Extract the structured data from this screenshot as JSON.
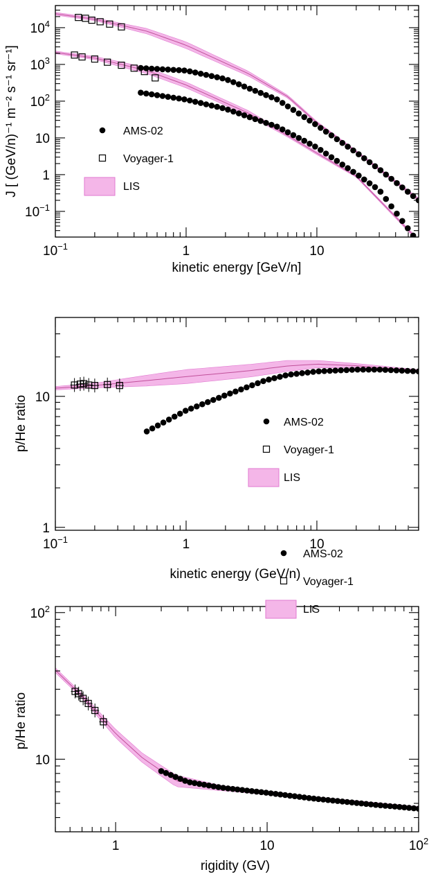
{
  "colors": {
    "band_fill": "#f4b6e8",
    "band_edge": "#e07ad0",
    "lis_line": "#c0509a",
    "marker": "#000000"
  },
  "chart_data": [
    {
      "type": "scatter",
      "xscale": "log",
      "yscale": "log",
      "xlim": [
        0.1,
        60
      ],
      "ylim": [
        0.02,
        40000
      ],
      "xlabel": "kinetic energy [GeV/n]",
      "ylabel": "J [ (GeV/n)⁻¹ m⁻² s⁻¹ sr⁻¹]",
      "x_ticks": [
        {
          "v": 0.1,
          "base": "10",
          "exp": "−1"
        },
        {
          "v": 1,
          "text": "1"
        },
        {
          "v": 10,
          "text": "10"
        }
      ],
      "y_ticks": [
        {
          "v": 0.1,
          "base": "10",
          "exp": "−1"
        },
        {
          "v": 1,
          "text": "1"
        },
        {
          "v": 10,
          "text": "10"
        },
        {
          "v": 100,
          "base": "10",
          "exp": "2"
        },
        {
          "v": 1000,
          "base": "10",
          "exp": "3"
        },
        {
          "v": 10000,
          "base": "10",
          "exp": "4"
        }
      ],
      "legend": [
        "AMS-02",
        "Voyager-1",
        "LIS"
      ],
      "legend_position": "middle-left",
      "series": [
        {
          "kind": "ams",
          "x_from": 0.45,
          "x_to": 60,
          "n": 52,
          "anchors": [
            [
              0.45,
              800
            ],
            [
              1,
              680
            ],
            [
              2,
              400
            ],
            [
              5,
              110
            ],
            [
              10,
              22
            ],
            [
              20,
              4
            ],
            [
              30,
              1.4
            ],
            [
              60,
              0.2
            ]
          ]
        },
        {
          "kind": "ams",
          "x_from": 0.45,
          "x_to": 60,
          "n": 52,
          "anchors": [
            [
              0.45,
              170
            ],
            [
              1,
              110
            ],
            [
              2,
              62
            ],
            [
              5,
              20
            ],
            [
              10,
              5.5
            ],
            [
              20,
              1.05
            ],
            [
              30,
              0.38
            ],
            [
              55,
              0.021
            ]
          ]
        },
        {
          "kind": "voyager",
          "points": [
            [
              0.15,
              19000
            ],
            [
              0.17,
              18000
            ],
            [
              0.19,
              16000
            ],
            [
              0.22,
              14500
            ],
            [
              0.26,
              12500
            ],
            [
              0.32,
              10500
            ]
          ]
        },
        {
          "kind": "voyager",
          "points": [
            [
              0.14,
              1800
            ],
            [
              0.16,
              1600
            ],
            [
              0.2,
              1400
            ],
            [
              0.25,
              1150
            ],
            [
              0.32,
              950
            ],
            [
              0.4,
              790
            ],
            [
              0.48,
              640
            ],
            [
              0.58,
              430
            ]
          ]
        },
        {
          "kind": "lis",
          "anchors": [
            [
              0.1,
              22000,
              26000
            ],
            [
              0.2,
              15500,
              18500
            ],
            [
              0.5,
              6800,
              9500
            ],
            [
              1,
              2700,
              4100
            ],
            [
              3,
              480,
              650
            ],
            [
              6,
              120,
              145
            ],
            [
              10,
              24,
              28
            ],
            [
              20,
              4,
              4.5
            ],
            [
              60,
              0.19,
              0.23
            ]
          ]
        },
        {
          "kind": "lis",
          "anchors": [
            [
              0.1,
              1950,
              2300
            ],
            [
              0.2,
              1350,
              1650
            ],
            [
              0.5,
              560,
              820
            ],
            [
              1,
              230,
              330
            ],
            [
              3,
              40,
              55
            ],
            [
              6,
              10.5,
              12.5
            ],
            [
              10,
              3.5,
              4.2
            ],
            [
              20,
              0.85,
              0.95
            ],
            [
              55,
              0.02,
              0.024
            ]
          ]
        }
      ]
    },
    {
      "type": "scatter",
      "xscale": "log",
      "yscale": "log",
      "xlim": [
        0.1,
        60
      ],
      "ylim": [
        0.95,
        40
      ],
      "xlabel": "kinetic energy (GeV/n)",
      "ylabel": "p/He ratio",
      "x_ticks": [
        {
          "v": 0.1,
          "base": "10",
          "exp": "−1"
        },
        {
          "v": 1,
          "text": "1"
        },
        {
          "v": 10,
          "text": "10"
        }
      ],
      "y_ticks": [
        {
          "v": 1,
          "text": "1"
        },
        {
          "v": 10,
          "text": "10"
        }
      ],
      "legend": [
        "AMS-02",
        "Voyager-1",
        "LIS"
      ],
      "legend_position": "center-right",
      "series": [
        {
          "kind": "ams",
          "x_from": 0.5,
          "x_to": 60,
          "n": 50,
          "anchors": [
            [
              0.5,
              5.4
            ],
            [
              0.75,
              6.7
            ],
            [
              1,
              7.8
            ],
            [
              2,
              10.2
            ],
            [
              4,
              13.2
            ],
            [
              6,
              14.6
            ],
            [
              10,
              15.5
            ],
            [
              20,
              16.0
            ],
            [
              30,
              16.0
            ],
            [
              60,
              15.5
            ]
          ]
        },
        {
          "kind": "voyager",
          "errors": true,
          "points": [
            [
              0.14,
              12.2
            ],
            [
              0.155,
              12.4
            ],
            [
              0.165,
              12.5
            ],
            [
              0.18,
              12.2
            ],
            [
              0.2,
              12.1
            ],
            [
              0.25,
              12.3
            ],
            [
              0.31,
              12.1
            ]
          ]
        },
        {
          "kind": "lis",
          "anchors": [
            [
              0.1,
              11.2,
              11.9
            ],
            [
              0.2,
              11.6,
              12.6
            ],
            [
              0.5,
              12.0,
              14.5
            ],
            [
              1,
              12.5,
              16
            ],
            [
              3,
              14,
              17.5
            ],
            [
              6,
              15.5,
              18.8
            ],
            [
              10,
              16.5,
              18.8
            ],
            [
              20,
              16.5,
              17.8
            ],
            [
              60,
              15.3,
              16.0
            ]
          ]
        }
      ]
    },
    {
      "type": "scatter",
      "xscale": "log",
      "yscale": "log",
      "xlim": [
        0.4,
        100
      ],
      "ylim": [
        3.2,
        110
      ],
      "xlabel": "rigidity (GV)",
      "ylabel": "p/He ratio",
      "x_ticks": [
        {
          "v": 1,
          "text": "1"
        },
        {
          "v": 10,
          "text": "10"
        },
        {
          "v": 100,
          "base": "10",
          "exp": "2"
        }
      ],
      "y_ticks": [
        {
          "v": 10,
          "text": "10"
        },
        {
          "v": 100,
          "base": "10",
          "exp": "2"
        }
      ],
      "legend": [
        "AMS-02",
        "Voyager-1",
        "LIS"
      ],
      "legend_position": "top-right",
      "series": [
        {
          "kind": "ams",
          "x_from": 2.0,
          "x_to": 100,
          "n": 55,
          "anchors": [
            [
              2,
              8.3
            ],
            [
              3,
              7.0
            ],
            [
              5,
              6.4
            ],
            [
              10,
              5.9
            ],
            [
              20,
              5.4
            ],
            [
              50,
              4.9
            ],
            [
              100,
              4.6
            ]
          ]
        },
        {
          "kind": "voyager",
          "errors": true,
          "points": [
            [
              0.54,
              29
            ],
            [
              0.57,
              28
            ],
            [
              0.61,
              26
            ],
            [
              0.66,
              24
            ],
            [
              0.73,
              21.5
            ],
            [
              0.83,
              18
            ]
          ]
        },
        {
          "kind": "lis",
          "anchors": [
            [
              0.4,
              39,
              42
            ],
            [
              0.6,
              26,
              28
            ],
            [
              1,
              14,
              16
            ],
            [
              1.5,
              9.5,
              11
            ],
            [
              2.5,
              6.5,
              7.8
            ],
            [
              5,
              6.1,
              6.6
            ],
            [
              10,
              5.75,
              6.05
            ],
            [
              20,
              5.3,
              5.55
            ],
            [
              100,
              4.55,
              4.75
            ]
          ]
        }
      ]
    }
  ]
}
